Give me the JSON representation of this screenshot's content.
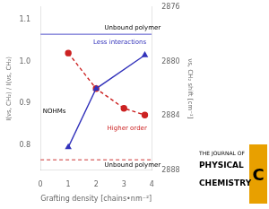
{
  "chart_data": {
    "type": "line",
    "x_label": "Grafting density [chains•nm⁻²]",
    "y_label": "I(νs, CH₂) / I(νs, CH₂)",
    "y2_label": "νs, CH₂ shift [cm⁻¹]",
    "xlim": [
      0,
      4
    ],
    "xticks": [
      0,
      1,
      2,
      3,
      4
    ],
    "ylim": [
      0.74,
      1.13
    ],
    "yticks": [
      0.8,
      0.9,
      {
        "value": 1.0,
        "label": "1.0"
      },
      1.1
    ],
    "y2lim": [
      2888,
      2876
    ],
    "y2ticks": [
      2876,
      2880,
      2884,
      2888
    ],
    "grid": false,
    "series": [
      {
        "color": "#3333bb",
        "marker": "triangle",
        "line_style": "solid",
        "x": [
          1.0,
          2.0,
          3.75
        ],
        "values": [
          0.795,
          0.935,
          1.015
        ]
      },
      {
        "color": "#cc2222",
        "marker": "circle",
        "line_style": "dashed",
        "x": [
          1.0,
          2.0,
          3.0,
          3.75
        ],
        "values": [
          1.02,
          0.935,
          0.888,
          0.872
        ]
      }
    ],
    "hlines": [
      {
        "value": 1.065,
        "color": "#5555cc",
        "line_style": "solid"
      },
      {
        "value": 0.765,
        "color": "#cc3333",
        "line_style": "dashed"
      }
    ],
    "annotations": [
      "Unbound polymer",
      "Unbound polymer",
      "NOHMs",
      "Less interactions",
      "Higher order"
    ],
    "logo": {
      "texts": [
        "THE JOURNAL OF",
        "PHYSICAL",
        "CHEMISTRY"
      ],
      "letter": "C",
      "color": "#E8A000"
    }
  }
}
